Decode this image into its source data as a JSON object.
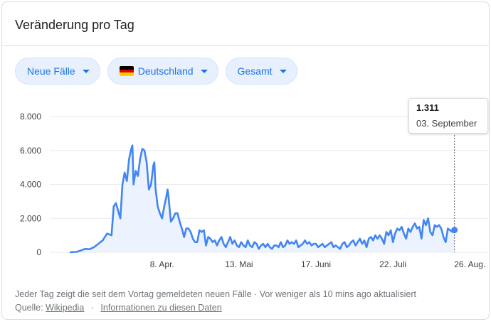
{
  "card": {
    "title": "Veränderung pro Tag"
  },
  "filters": [
    {
      "label": "Neue Fälle"
    },
    {
      "label": "Deutschland",
      "flag_colors": [
        "#000000",
        "#dd0000",
        "#ffce00"
      ]
    },
    {
      "label": "Gesamt"
    }
  ],
  "tooltip": {
    "value": "1.311",
    "date": "03. September"
  },
  "footer": {
    "text": "Jeder Tag zeigt die seit dem Vortag gemeldeten neuen Fälle · Vor weniger als 10 mins ago aktualisiert",
    "source_label": "Quelle:",
    "source_link": "Wikipedia",
    "separator": "·",
    "info_link": "Informationen zu diesen Daten"
  },
  "colors": {
    "line": "#4285f4",
    "area": "#e8f0fe",
    "grid": "#e8eaed"
  },
  "chart_data": {
    "type": "area",
    "title": "",
    "xlabel": "",
    "ylabel": "",
    "x_range": [
      "2020-02-26",
      "2020-09-03"
    ],
    "ylim": [
      0,
      8000
    ],
    "yticks": [
      0,
      2000,
      4000,
      6000,
      8000
    ],
    "ytick_labels": [
      "0",
      "2.000",
      "4.000",
      "6.000",
      "8.000"
    ],
    "xticks": [
      "2020-04-08",
      "2020-05-13",
      "2020-06-17",
      "2020-07-22",
      "2020-08-26"
    ],
    "xtick_labels": [
      "8. Apr.",
      "13. Mai",
      "17. Juni",
      "22. Juli",
      "26. Aug."
    ],
    "grid": true,
    "series": [
      {
        "values": [
          [
            0,
            0
          ],
          [
            3,
            20
          ],
          [
            5,
            100
          ],
          [
            7,
            200
          ],
          [
            9,
            180
          ],
          [
            11,
            300
          ],
          [
            13,
            500
          ],
          [
            15,
            700
          ],
          [
            17,
            1100
          ],
          [
            19,
            1000
          ],
          [
            20,
            2700
          ],
          [
            21,
            2900
          ],
          [
            23,
            2000
          ],
          [
            24,
            4000
          ],
          [
            25,
            4700
          ],
          [
            26,
            4200
          ],
          [
            27,
            5500
          ],
          [
            28,
            6100
          ],
          [
            28.5,
            6300
          ],
          [
            29,
            4000
          ],
          [
            30,
            4800
          ],
          [
            31,
            4500
          ],
          [
            32,
            5500
          ],
          [
            33,
            6100
          ],
          [
            34,
            6000
          ],
          [
            35,
            5300
          ],
          [
            36,
            3700
          ],
          [
            37,
            4000
          ],
          [
            38,
            5100
          ],
          [
            38.5,
            5300
          ],
          [
            39,
            3800
          ],
          [
            40,
            2700
          ],
          [
            41,
            2300
          ],
          [
            42,
            2000
          ],
          [
            43,
            2700
          ],
          [
            44,
            3300
          ],
          [
            44.5,
            3700
          ],
          [
            45,
            3200
          ],
          [
            46,
            1800
          ],
          [
            47,
            2000
          ],
          [
            48,
            2300
          ],
          [
            49,
            2300
          ],
          [
            50,
            1800
          ],
          [
            51,
            1400
          ],
          [
            52,
            900
          ],
          [
            53,
            1400
          ],
          [
            54,
            1400
          ],
          [
            55,
            1200
          ],
          [
            56,
            800
          ],
          [
            57,
            600
          ],
          [
            58,
            600
          ],
          [
            59,
            1300
          ],
          [
            60,
            1200
          ],
          [
            61,
            1300
          ],
          [
            62,
            400
          ],
          [
            63,
            900
          ],
          [
            64,
            800
          ],
          [
            65,
            600
          ],
          [
            66,
            700
          ],
          [
            67,
            400
          ],
          [
            68,
            700
          ],
          [
            69,
            900
          ],
          [
            70,
            500
          ],
          [
            71,
            300
          ],
          [
            72,
            600
          ],
          [
            73,
            900
          ],
          [
            74,
            500
          ],
          [
            75,
            700
          ],
          [
            76,
            400
          ],
          [
            77,
            300
          ],
          [
            78,
            600
          ],
          [
            79,
            400
          ],
          [
            80,
            300
          ],
          [
            81,
            700
          ],
          [
            82,
            400
          ],
          [
            83,
            300
          ],
          [
            84,
            600
          ],
          [
            85,
            500
          ],
          [
            86,
            200
          ],
          [
            87,
            400
          ],
          [
            88,
            500
          ],
          [
            89,
            300
          ],
          [
            90,
            500
          ],
          [
            91,
            300
          ],
          [
            92,
            200
          ],
          [
            93,
            400
          ],
          [
            94,
            400
          ],
          [
            95,
            300
          ],
          [
            96,
            600
          ],
          [
            97,
            300
          ],
          [
            98,
            400
          ],
          [
            99,
            700
          ],
          [
            100,
            500
          ],
          [
            101,
            600
          ],
          [
            102,
            500
          ],
          [
            103,
            700
          ],
          [
            104,
            300
          ],
          [
            105,
            400
          ],
          [
            106,
            500
          ],
          [
            107,
            700
          ],
          [
            108,
            500
          ],
          [
            109,
            600
          ],
          [
            110,
            400
          ],
          [
            111,
            500
          ],
          [
            112,
            500
          ],
          [
            113,
            300
          ],
          [
            114,
            400
          ],
          [
            115,
            500
          ],
          [
            116,
            300
          ],
          [
            117,
            400
          ],
          [
            118,
            500
          ],
          [
            119,
            600
          ],
          [
            120,
            300
          ],
          [
            121,
            400
          ],
          [
            122,
            300
          ],
          [
            123,
            200
          ],
          [
            124,
            500
          ],
          [
            125,
            600
          ],
          [
            126,
            300
          ],
          [
            127,
            400
          ],
          [
            128,
            600
          ],
          [
            129,
            700
          ],
          [
            130,
            400
          ],
          [
            131,
            600
          ],
          [
            132,
            800
          ],
          [
            133,
            500
          ],
          [
            134,
            700
          ],
          [
            135,
            300
          ],
          [
            136,
            800
          ],
          [
            137,
            900
          ],
          [
            138,
            700
          ],
          [
            139,
            1000
          ],
          [
            140,
            800
          ],
          [
            141,
            1000
          ],
          [
            142,
            800
          ],
          [
            143,
            500
          ],
          [
            144,
            1200
          ],
          [
            145,
            1000
          ],
          [
            146,
            1300
          ],
          [
            147,
            600
          ],
          [
            148,
            1100
          ],
          [
            149,
            1400
          ],
          [
            150,
            1300
          ],
          [
            151,
            1500
          ],
          [
            152,
            1100
          ],
          [
            153,
            800
          ],
          [
            154,
            1400
          ],
          [
            155,
            1200
          ],
          [
            156,
            1500
          ],
          [
            157,
            1700
          ],
          [
            158,
            1400
          ],
          [
            159,
            1500
          ],
          [
            160,
            800
          ],
          [
            161,
            1900
          ],
          [
            162,
            1600
          ],
          [
            163,
            2000
          ],
          [
            164,
            1200
          ],
          [
            165,
            1000
          ],
          [
            166,
            1600
          ],
          [
            167,
            1500
          ],
          [
            168,
            1600
          ],
          [
            169,
            1400
          ],
          [
            170,
            900
          ],
          [
            171,
            600
          ],
          [
            172,
            1400
          ],
          [
            173,
            1300
          ],
          [
            174,
            1200
          ],
          [
            175,
            1311
          ]
        ]
      }
    ]
  }
}
